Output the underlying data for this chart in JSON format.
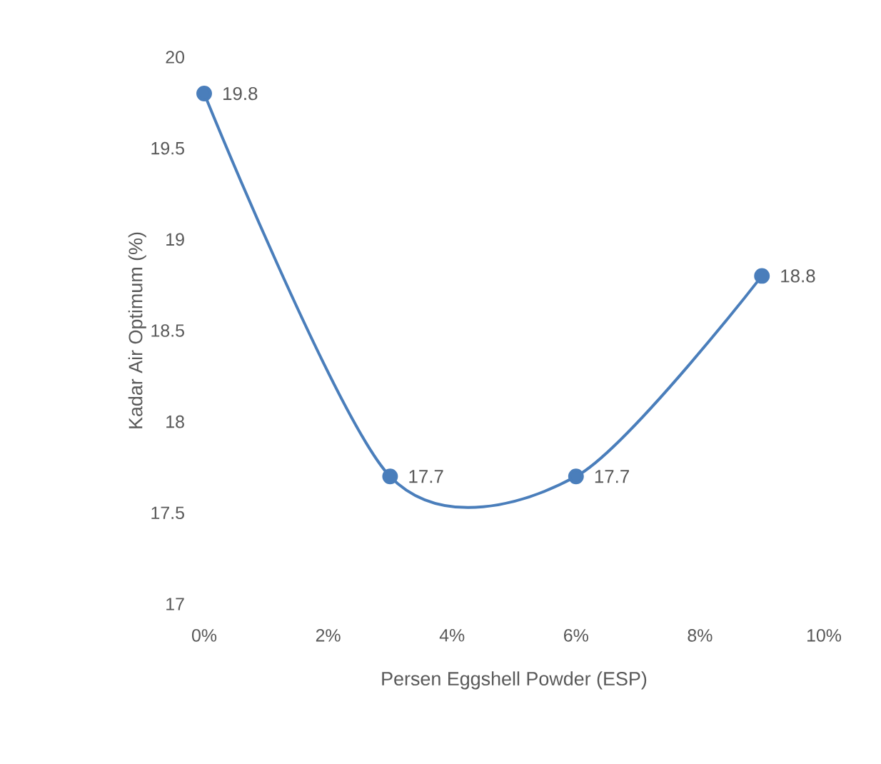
{
  "chart_data": {
    "type": "line",
    "xlabel": "Persen Eggshell Powder (ESP)",
    "ylabel": "Kadar Air Optimum (%)",
    "x": [
      0,
      3,
      6,
      9
    ],
    "values": [
      19.8,
      17.7,
      17.7,
      18.8
    ],
    "value_labels": [
      "19.8",
      "17.7",
      "17.7",
      "18.8"
    ],
    "color": "#4a7ebb",
    "marker": "circle",
    "line_style": "solid",
    "grid": false,
    "xlim": [
      0,
      10
    ],
    "xticks": [
      {
        "value": 0,
        "label": "0%"
      },
      {
        "value": 2,
        "label": "2%"
      },
      {
        "value": 4,
        "label": "4%"
      },
      {
        "value": 6,
        "label": "6%"
      },
      {
        "value": 8,
        "label": "8%"
      },
      {
        "value": 10,
        "label": "10%"
      }
    ],
    "ylim": [
      17,
      20
    ],
    "yticks": [
      17,
      17.5,
      18,
      18.5,
      19,
      19.5,
      20
    ]
  }
}
